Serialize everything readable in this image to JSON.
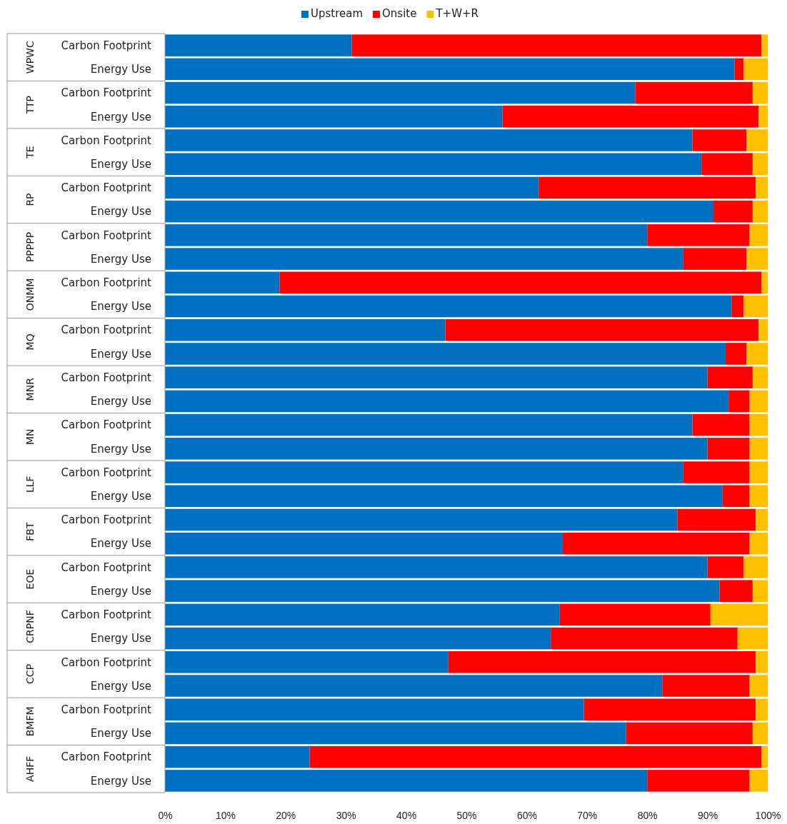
{
  "chart_data": {
    "type": "bar",
    "orientation": "horizontal",
    "stacked": true,
    "legend": "top",
    "grid": false,
    "categories": [
      "Carbon Footprint",
      "Energy Use",
      "Carbon Footprint",
      "Energy Use",
      "Carbon Footprint",
      "Energy Use",
      "Carbon Footprint",
      "Energy Use",
      "Carbon Footprint",
      "Energy Use",
      "Carbon Footprint",
      "Energy Use",
      "Carbon Footprint",
      "Energy Use",
      "Carbon Footprint",
      "Energy Use",
      "Carbon Footprint",
      "Energy Use",
      "Carbon Footprint",
      "Energy Use",
      "Carbon Footprint",
      "Energy Use",
      "Carbon Footprint",
      "Energy Use",
      "Carbon Footprint",
      "Energy Use",
      "Carbon Footprint",
      "Energy Use",
      "Carbon Footprint",
      "Energy Use",
      "Carbon Footprint",
      "Energy Use"
    ],
    "annotations": [
      "WPWC",
      "TTP",
      "TE",
      "RP",
      "PPPPP",
      "ONMM",
      "MQ",
      "MNR",
      "MN",
      "LLF",
      "FBT",
      "EOE",
      "CRPNF",
      "CCP",
      "BMFM",
      "AHFF"
    ],
    "xlim": [
      0,
      100
    ],
    "xticks": [
      {
        "value": 0,
        "label": "0%"
      },
      {
        "value": 10,
        "label": "10%"
      },
      {
        "value": 20,
        "label": "20%"
      },
      {
        "value": 30,
        "label": "30%"
      },
      {
        "value": 40,
        "label": "40%"
      },
      {
        "value": 50,
        "label": "50%"
      },
      {
        "value": 60,
        "label": "60%"
      },
      {
        "value": 70,
        "label": "70%"
      },
      {
        "value": 80,
        "label": "80%"
      },
      {
        "value": 90,
        "label": "90%"
      },
      {
        "value": 100,
        "label": "100%"
      }
    ],
    "series": [
      {
        "name": "Upstream",
        "color": "#0070c0",
        "values": [
          31,
          94.5,
          78,
          56,
          87.5,
          89,
          62,
          91,
          80,
          86,
          19,
          94,
          46.5,
          93,
          90,
          93.5,
          87.5,
          90,
          86,
          92.5,
          85,
          66,
          90,
          92,
          65.5,
          64,
          47,
          82.5,
          69.5,
          76.5,
          24,
          80
        ]
      },
      {
        "name": "Onsite",
        "color": "#ff0000",
        "values": [
          68,
          1.5,
          19.5,
          42.5,
          9,
          8.5,
          36,
          6.5,
          17,
          10.5,
          80,
          2,
          52,
          3.5,
          7.5,
          3.5,
          9.5,
          7,
          11,
          4.5,
          13,
          31,
          6,
          5.5,
          25,
          31,
          51,
          14.5,
          28.5,
          21,
          75,
          17
        ]
      },
      {
        "name": "T+W+R",
        "color": "#ffc000",
        "values": [
          1,
          4,
          2.5,
          1.5,
          3.5,
          2.5,
          2,
          2.5,
          3,
          3.5,
          1,
          4,
          1.5,
          3.5,
          2.5,
          3,
          3,
          3,
          3,
          3,
          2,
          3,
          4,
          2.5,
          9.5,
          5,
          2,
          3,
          2,
          2.5,
          1,
          3
        ]
      }
    ]
  }
}
